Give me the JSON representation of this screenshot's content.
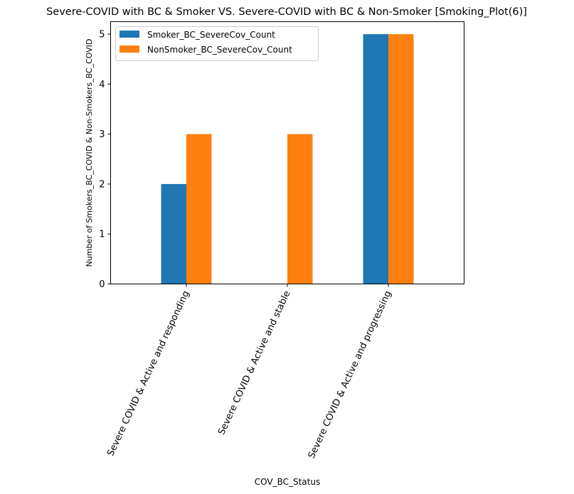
{
  "chart_data": {
    "type": "bar",
    "title": "Severe-COVID with BC & Smoker VS. Severe-COVID with BC & Non-Smoker   [Smoking_Plot(6)]",
    "xlabel": "COV_BC_Status",
    "ylabel": "Number of Smokers_BC_COVID & Non-Smokers_BC_COVID",
    "categories": [
      "Severe COVID & Active and responding",
      "Severe COVID &  Active and stable",
      "Severe COVID & Active and progressing"
    ],
    "series": [
      {
        "name": "Smoker_BC_SevereCov_Count",
        "values": [
          2,
          0,
          5
        ],
        "color": "#1f77b4"
      },
      {
        "name": "NonSmoker_BC_SevereCov_Count",
        "values": [
          3,
          3,
          5
        ],
        "color": "#ff7f0e"
      }
    ],
    "ylim": [
      0,
      5.25
    ],
    "yticks": [
      0,
      1,
      2,
      3,
      4,
      5
    ],
    "grid": false,
    "legend_position": "top-left"
  }
}
